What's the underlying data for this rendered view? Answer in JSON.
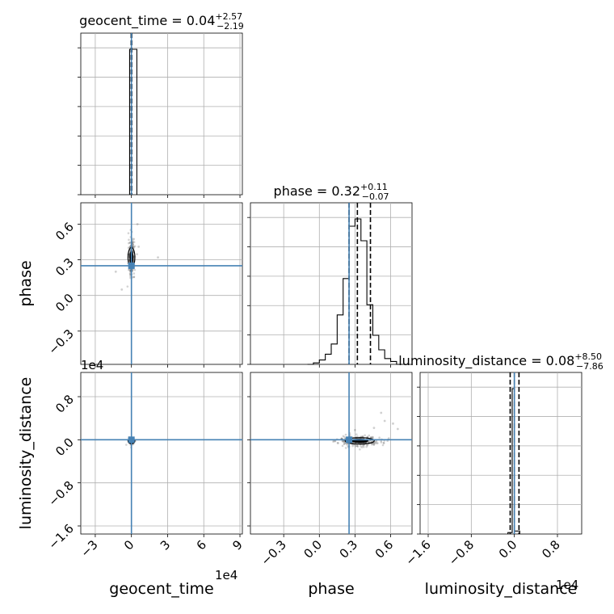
{
  "chart_data": {
    "type": "corner",
    "parameters": [
      "geocent_time",
      "phase",
      "luminosity_distance"
    ],
    "labels": {
      "geocent_time": "geocent_time",
      "phase": "phase",
      "luminosity_distance": "luminosity_distance"
    },
    "axis_ranges": {
      "geocent_time": [
        -4.2,
        9.2
      ],
      "phase": [
        -0.58,
        0.78
      ],
      "luminosity_distance": [
        -1.75,
        1.25
      ]
    },
    "ticks": {
      "geocent_time": [
        -3,
        0,
        3,
        6,
        9
      ],
      "phase": [
        -0.3,
        0.0,
        0.3,
        0.6
      ],
      "luminosity_distance": [
        -1.6,
        -0.8,
        0.0,
        0.8
      ]
    },
    "tick_labels": {
      "geocent_time": [
        "−3",
        "0",
        "3",
        "6",
        "9"
      ],
      "phase": [
        "−0.3",
        "0.0",
        "0.3",
        "0.6"
      ],
      "luminosity_distance": [
        "−1.6",
        "−0.8",
        "0.0",
        "0.8"
      ]
    },
    "offset_text": {
      "geocent_time": "1e4",
      "luminosity_distance": "1e4"
    },
    "titles": {
      "geocent_time": {
        "name": "geocent_time",
        "median": "0.04",
        "plus": "+2.57",
        "minus": "−2.19"
      },
      "phase": {
        "name": "phase",
        "median": "0.32",
        "plus": "+0.11",
        "minus": "−0.07"
      },
      "luminosity_distance": {
        "name": "luminosity_distance",
        "median": "0.08",
        "plus": "+8.50",
        "minus": "−7.86"
      }
    },
    "truths": {
      "geocent_time": 0.0,
      "phase": 0.25,
      "luminosity_distance": 0.0
    },
    "quantiles": {
      "geocent_time": [
        -0.0219,
        0.0004,
        0.0261
      ],
      "phase": [
        0.25,
        0.32,
        0.43
      ],
      "luminosity_distance": [
        -0.0778,
        0.0008,
        0.0858
      ]
    },
    "histograms": {
      "geocent_time": {
        "edges": [
          -0.15,
          0.45
        ],
        "counts": [
          1.0
        ]
      },
      "phase": {
        "edges": [
          -0.1,
          -0.05,
          0.0,
          0.05,
          0.1,
          0.15,
          0.2,
          0.25,
          0.3,
          0.35,
          0.4,
          0.45,
          0.5,
          0.55,
          0.6,
          0.65,
          0.7
        ],
        "counts": [
          0.0,
          0.01,
          0.03,
          0.07,
          0.14,
          0.34,
          0.59,
          0.95,
          1.0,
          0.85,
          0.41,
          0.2,
          0.1,
          0.04,
          0.02,
          0.0
        ]
      },
      "luminosity_distance": {
        "edges": [
          -0.12,
          -0.04,
          0.0,
          0.1
        ],
        "counts": [
          0.01,
          0.98,
          0.02
        ]
      }
    },
    "scatter_samples": {
      "phase_vs_geocent_time": {
        "center": [
          0.0,
          0.32
        ],
        "spread": [
          0.12,
          0.07
        ],
        "outliers": [
          [
            -1.3,
            0.2
          ],
          [
            -0.8,
            0.05
          ],
          [
            2.2,
            0.32
          ],
          [
            0.5,
            0.6
          ],
          [
            0.6,
            0.41
          ]
        ]
      },
      "luminosity_distance_vs_geocent_time": {
        "center": [
          0.0,
          -0.02
        ],
        "spread": [
          0.1,
          0.03
        ]
      },
      "luminosity_distance_vs_phase": {
        "center": [
          0.34,
          -0.02
        ],
        "spread": [
          0.09,
          0.05
        ],
        "outliers": [
          [
            0.46,
            0.22
          ],
          [
            0.55,
            0.35
          ],
          [
            0.62,
            0.3
          ],
          [
            0.52,
            0.5
          ],
          [
            0.66,
            0.2
          ],
          [
            0.3,
            0.18
          ]
        ]
      }
    },
    "grid": true
  }
}
